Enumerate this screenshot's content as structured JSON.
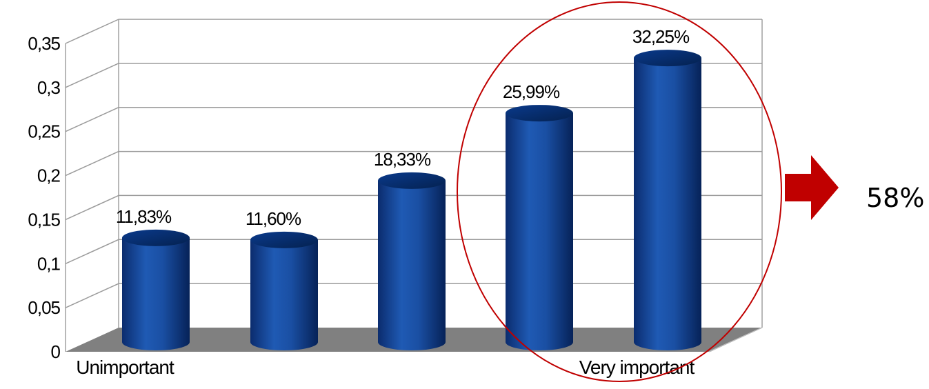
{
  "chart_data": {
    "type": "bar",
    "style": "3d-cylinder",
    "categories": [
      "Unimportant",
      "",
      "",
      "",
      "Very important"
    ],
    "values": [
      0.1183,
      0.116,
      0.1833,
      0.2599,
      0.3225
    ],
    "data_labels": [
      "11,83%",
      "11,60%",
      "18,33%",
      "25,99%",
      "32,25%"
    ],
    "y_ticks": [
      "0",
      "0,05",
      "0,1",
      "0,15",
      "0,2",
      "0,25",
      "0,3",
      "0,35"
    ],
    "ylim": [
      0,
      0.35
    ],
    "grid": true,
    "legend": "none",
    "bar_color": "#0a3a8c",
    "floor_color": "#808080",
    "highlight": {
      "bars": [
        3,
        4
      ],
      "color": "#c00000",
      "callout": "58%"
    }
  }
}
